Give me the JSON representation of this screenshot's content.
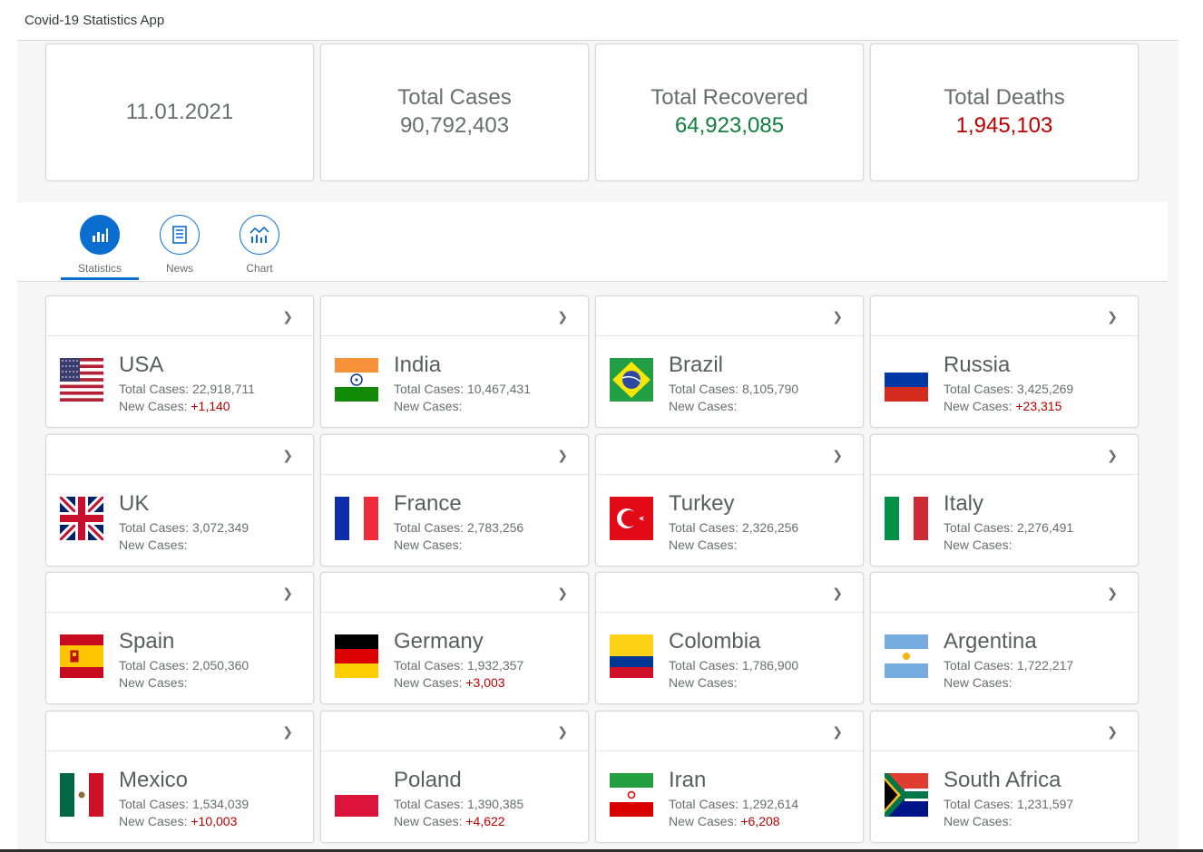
{
  "app": {
    "title": "Covid-19 Statistics App"
  },
  "summary": {
    "date": "11.01.2021",
    "total_cases_label": "Total Cases",
    "total_cases": "90,792,403",
    "total_recovered_label": "Total Recovered",
    "total_recovered": "64,923,085",
    "total_deaths_label": "Total Deaths",
    "total_deaths": "1,945,103"
  },
  "tabs": [
    {
      "label": "Statistics",
      "icon": "bar-chart-icon",
      "active": true
    },
    {
      "label": "News",
      "icon": "newspaper-icon",
      "active": false
    },
    {
      "label": "Chart",
      "icon": "line-chart-icon",
      "active": false
    }
  ],
  "labels": {
    "total_cases": "Total Cases:",
    "new_cases": "New Cases:"
  },
  "countries": [
    {
      "name": "USA",
      "total": "22,918,711",
      "new": "+1,140",
      "flag": "usa-flag"
    },
    {
      "name": "India",
      "total": "10,467,431",
      "new": "",
      "flag": "india-flag"
    },
    {
      "name": "Brazil",
      "total": "8,105,790",
      "new": "",
      "flag": "brazil-flag"
    },
    {
      "name": "Russia",
      "total": "3,425,269",
      "new": "+23,315",
      "flag": "russia-flag"
    },
    {
      "name": "UK",
      "total": "3,072,349",
      "new": "",
      "flag": "uk-flag"
    },
    {
      "name": "France",
      "total": "2,783,256",
      "new": "",
      "flag": "france-flag"
    },
    {
      "name": "Turkey",
      "total": "2,326,256",
      "new": "",
      "flag": "turkey-flag"
    },
    {
      "name": "Italy",
      "total": "2,276,491",
      "new": "",
      "flag": "italy-flag"
    },
    {
      "name": "Spain",
      "total": "2,050,360",
      "new": "",
      "flag": "spain-flag"
    },
    {
      "name": "Germany",
      "total": "1,932,357",
      "new": "+3,003",
      "flag": "germany-flag"
    },
    {
      "name": "Colombia",
      "total": "1,786,900",
      "new": "",
      "flag": "colombia-flag"
    },
    {
      "name": "Argentina",
      "total": "1,722,217",
      "new": "",
      "flag": "argentina-flag"
    },
    {
      "name": "Mexico",
      "total": "1,534,039",
      "new": "+10,003",
      "flag": "mexico-flag"
    },
    {
      "name": "Poland",
      "total": "1,390,385",
      "new": "+4,622",
      "flag": "poland-flag"
    },
    {
      "name": "Iran",
      "total": "1,292,614",
      "new": "+6,208",
      "flag": "iran-flag"
    },
    {
      "name": "South Africa",
      "total": "1,231,597",
      "new": "",
      "flag": "south-africa-flag"
    }
  ],
  "colors": {
    "accent": "#0a6ed1",
    "recovered": "#107e3e",
    "deaths": "#bb0000"
  }
}
